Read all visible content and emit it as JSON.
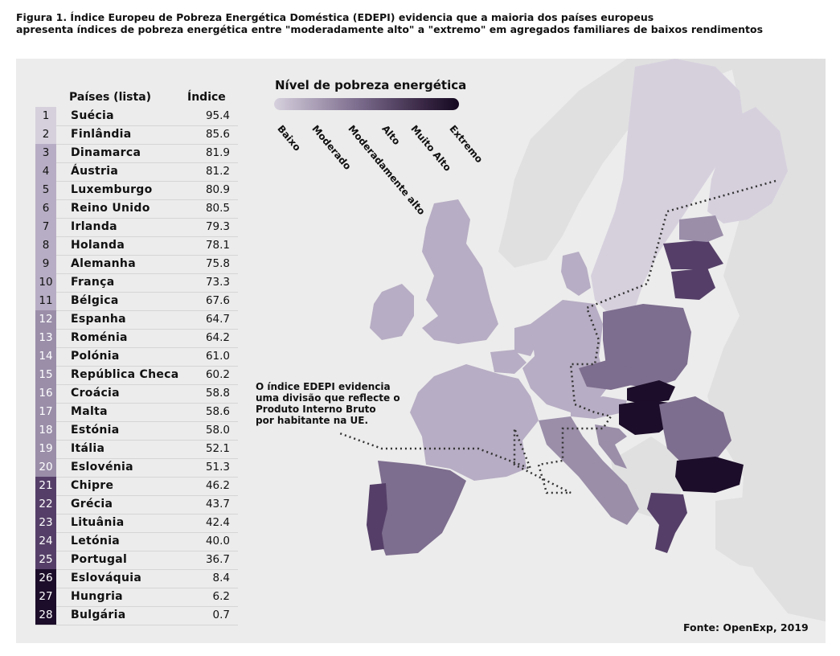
{
  "caption": {
    "line1": "Figura 1. Índice Europeu de Pobreza Energética Doméstica (EDEPI) evidencia que a maioria dos países europeus",
    "line2": "apresenta índices de pobreza energética entre \"moderadamente alto\" a \"extremo\" em agregados familiares de baixos rendimentos"
  },
  "table": {
    "col_country": "Países (lista)",
    "col_index": "Índice",
    "rows": [
      {
        "rank": "1",
        "country": "Suécia",
        "index": "95.4"
      },
      {
        "rank": "2",
        "country": "Finlândia",
        "index": "85.6"
      },
      {
        "rank": "3",
        "country": "Dinamarca",
        "index": "81.9"
      },
      {
        "rank": "4",
        "country": "Áustria",
        "index": "81.2"
      },
      {
        "rank": "5",
        "country": "Luxemburgo",
        "index": "80.9"
      },
      {
        "rank": "6",
        "country": "Reino Unido",
        "index": "80.5"
      },
      {
        "rank": "7",
        "country": "Irlanda",
        "index": "79.3"
      },
      {
        "rank": "8",
        "country": "Holanda",
        "index": "78.1"
      },
      {
        "rank": "9",
        "country": "Alemanha",
        "index": "75.8"
      },
      {
        "rank": "10",
        "country": "França",
        "index": "73.3"
      },
      {
        "rank": "11",
        "country": "Bélgica",
        "index": "67.6"
      },
      {
        "rank": "12",
        "country": "Espanha",
        "index": "64.7"
      },
      {
        "rank": "13",
        "country": "Roménia",
        "index": "64.2"
      },
      {
        "rank": "14",
        "country": "Polónia",
        "index": "61.0"
      },
      {
        "rank": "15",
        "country": "República Checa",
        "index": "60.2"
      },
      {
        "rank": "16",
        "country": "Croácia",
        "index": "58.8"
      },
      {
        "rank": "17",
        "country": "Malta",
        "index": "58.6"
      },
      {
        "rank": "18",
        "country": "Estónia",
        "index": "58.0"
      },
      {
        "rank": "19",
        "country": "Itália",
        "index": "52.1"
      },
      {
        "rank": "20",
        "country": "Eslovénia",
        "index": "51.3"
      },
      {
        "rank": "21",
        "country": "Chipre",
        "index": "46.2"
      },
      {
        "rank": "22",
        "country": "Grécia",
        "index": "43.7"
      },
      {
        "rank": "23",
        "country": "Lituânia",
        "index": "42.4"
      },
      {
        "rank": "24",
        "country": "Letónia",
        "index": "40.0"
      },
      {
        "rank": "25",
        "country": "Portugal",
        "index": "36.7"
      },
      {
        "rank": "26",
        "country": "Eslováquia",
        "index": "8.4"
      },
      {
        "rank": "27",
        "country": "Hungria",
        "index": "6.2"
      },
      {
        "rank": "28",
        "country": "Bulgária",
        "index": "0.7"
      }
    ]
  },
  "legend": {
    "title": "Nível de pobreza energética",
    "labels": [
      "Baixo",
      "Moderado",
      "Moderadamente alto",
      "Alto",
      "Muito Alto",
      "Extremo"
    ],
    "colors": [
      "#d6d0dd",
      "#b7adc4",
      "#9a8ea9",
      "#7d6d8e",
      "#553f68",
      "#1c0d2a"
    ]
  },
  "annotation": {
    "lines": [
      "O índice EDEPI evidencia",
      "uma divisão que reflecte o",
      "Produto Interno Bruto",
      "por habitante na UE."
    ]
  },
  "source": "Fonte: OpenExp, 2019"
}
